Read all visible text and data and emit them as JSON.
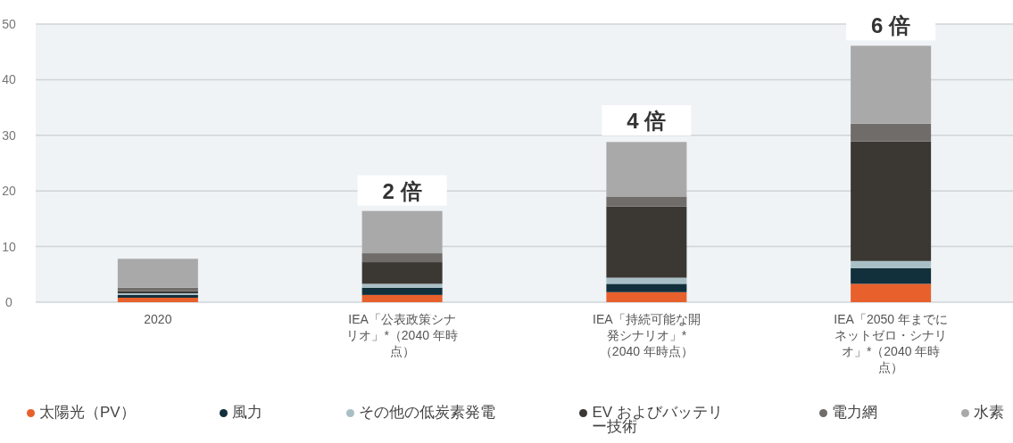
{
  "chart_data": {
    "type": "bar",
    "stacked": true,
    "categories": [
      "2020",
      "IEA「公表政策シナリオ」*（2040 年時点）",
      "IEA「持続可能な開発シナリオ」*（2040 年時点）",
      "IEA「2050 年までにネットゼロ・シナリオ」*（2040 年時点）"
    ],
    "series": [
      {
        "name": "太陽光（PV）",
        "color": "#e8602c",
        "values": [
          0.8,
          1.3,
          1.8,
          3.3
        ]
      },
      {
        "name": "風力",
        "color": "#12303c",
        "values": [
          0.5,
          1.3,
          1.5,
          2.8
        ]
      },
      {
        "name": "その他の低炭素発電",
        "color": "#a9bfc6",
        "values": [
          0.3,
          0.7,
          1.1,
          1.3
        ]
      },
      {
        "name": "EV およびバッテリー技術",
        "color": "#3b3834",
        "values": [
          0.4,
          3.9,
          12.8,
          21.5
        ]
      },
      {
        "name": "電力網",
        "color": "#6f6c6a",
        "values": [
          0.6,
          1.6,
          1.8,
          3.2
        ]
      },
      {
        "name": "水素",
        "color": "#a9a9a9",
        "values": [
          5.2,
          7.6,
          9.8,
          14.0
        ]
      }
    ],
    "ylim": [
      0,
      50
    ],
    "yticks": [
      0,
      10,
      20,
      30,
      40,
      50
    ],
    "grid": "y",
    "legend": "bottom",
    "annotations": [
      {
        "text": "2 倍",
        "x": "IEA「公表政策シナリオ」*（2040 年時点）",
        "y": 16.4
      },
      {
        "text": "4 倍",
        "x": "IEA「持続可能な開発シナリオ」*（2040 年時点）",
        "y": 29.0
      },
      {
        "text": "6 倍",
        "x": "IEA「2050 年までにネットゼロ・シナリオ」*（2040 年時点）",
        "y": 46.1
      }
    ]
  }
}
